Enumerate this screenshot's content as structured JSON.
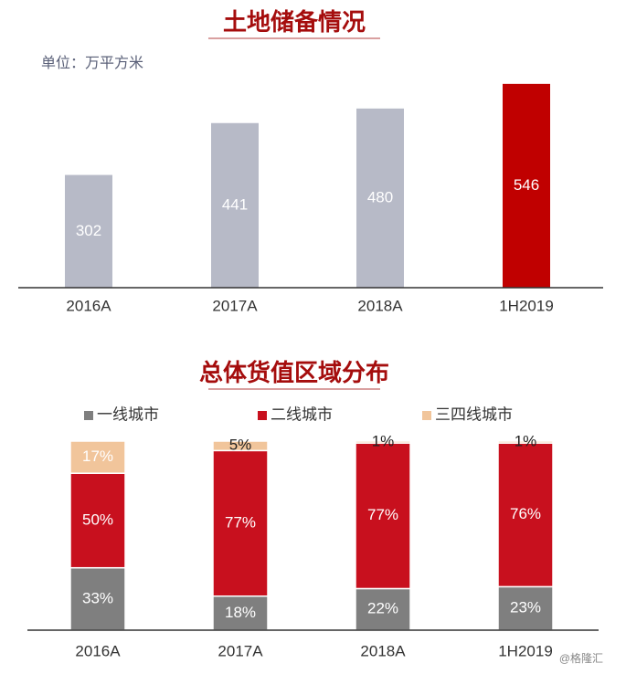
{
  "chart_data": [
    {
      "type": "bar",
      "title": "土地储备情况",
      "subtitle": "单位：万平方米",
      "categories": [
        "2016A",
        "2017A",
        "2018A",
        "1H2019"
      ],
      "values": [
        302,
        441,
        480,
        546
      ],
      "colors": [
        "#b7bac7",
        "#b7bac7",
        "#b7bac7",
        "#c00000"
      ],
      "ylim": [
        0,
        575
      ]
    },
    {
      "type": "stacked_bar",
      "title": "总体货值区域分布",
      "categories": [
        "2016A",
        "2017A",
        "2018A",
        "1H2019"
      ],
      "series": [
        {
          "name": "一线城市",
          "color": "#7f7f7f",
          "values": [
            33,
            18,
            22,
            23
          ],
          "value_labels": [
            "33%",
            "18%",
            "22%",
            "23%"
          ]
        },
        {
          "name": "二线城市",
          "color": "#c8101e",
          "values": [
            50,
            77,
            77,
            76
          ],
          "value_labels": [
            "50%",
            "77%",
            "77%",
            "76%"
          ]
        },
        {
          "name": "三四线城市",
          "color": "#f1c59b",
          "values": [
            17,
            5,
            1,
            1
          ],
          "value_labels": [
            "17%",
            "5%",
            "1%",
            "1%"
          ]
        }
      ],
      "ylim": [
        0,
        100
      ],
      "legend": "top"
    }
  ],
  "watermark": "@格隆汇"
}
